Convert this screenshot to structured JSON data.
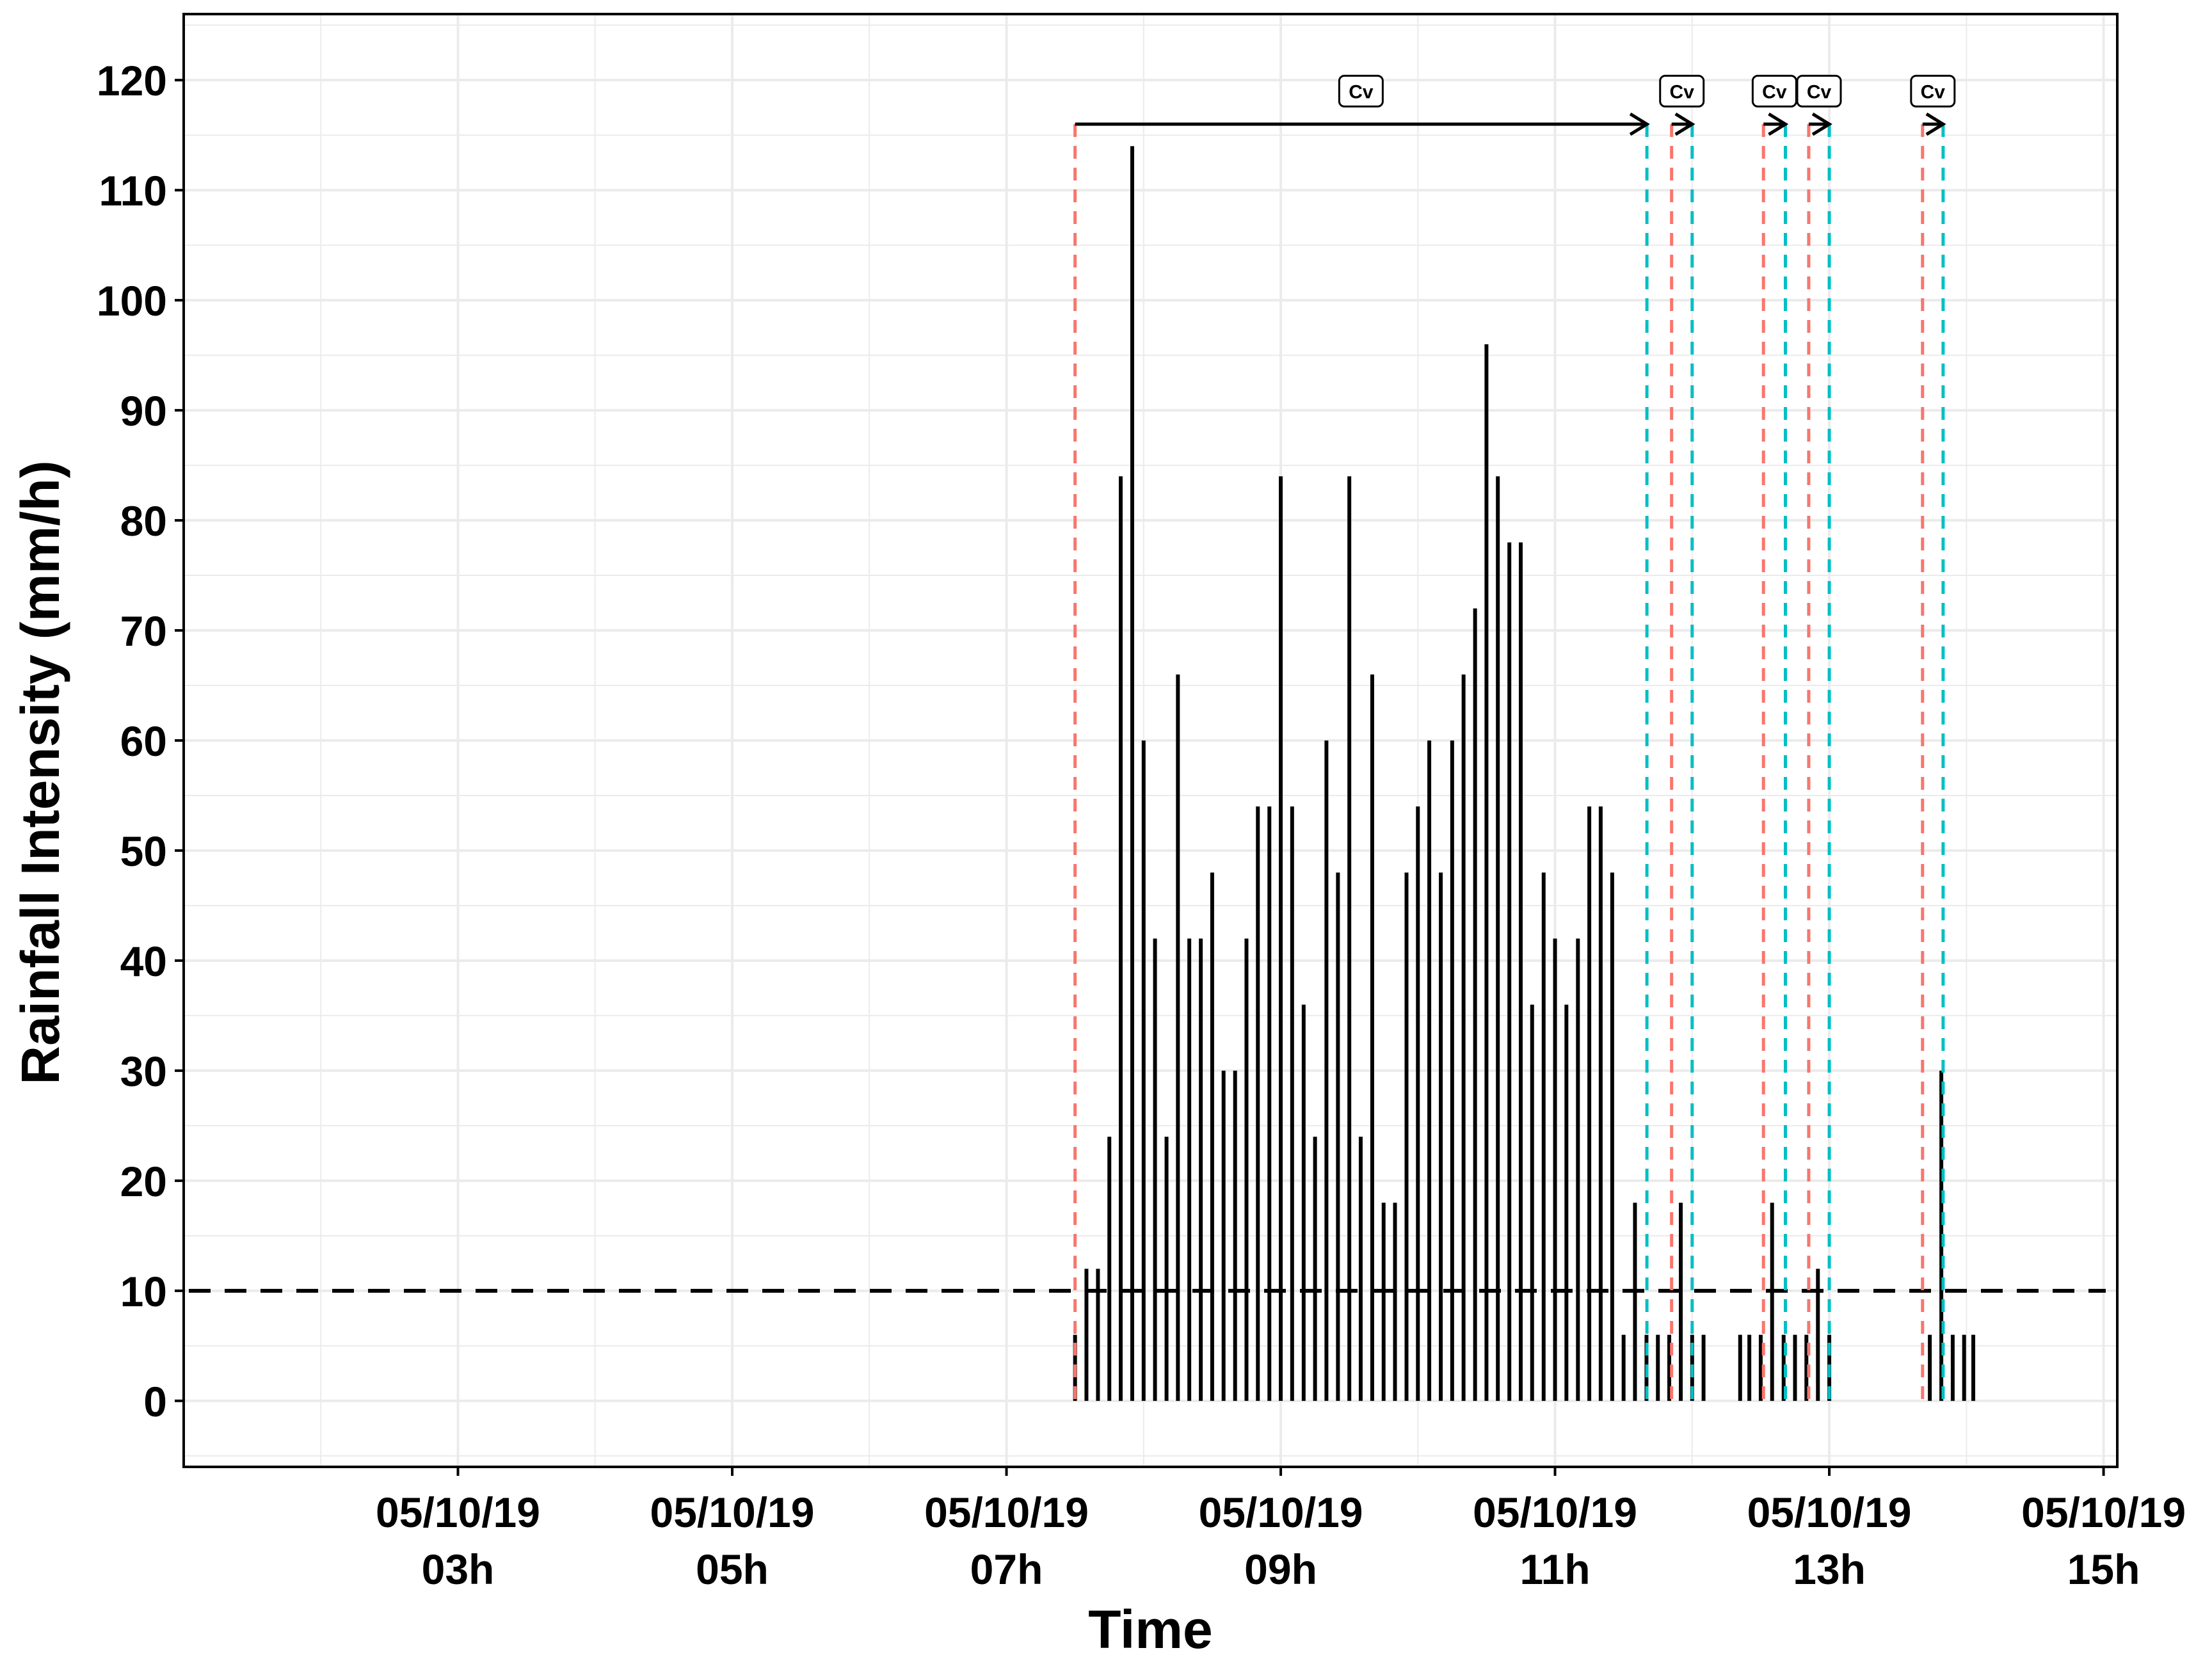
{
  "chart_data": {
    "type": "bar",
    "title": "",
    "xlabel": "Time",
    "ylabel": "Rainfall Intensity (mm/h)",
    "x_unit": "hours",
    "xlim": [
      1.0,
      15.1
    ],
    "ylim": [
      -6,
      126
    ],
    "y_ticks": [
      0,
      10,
      20,
      30,
      40,
      50,
      60,
      70,
      80,
      90,
      100,
      110,
      120
    ],
    "x_ticks": [
      {
        "x": 3,
        "line1": "05/10/19",
        "line2": "03h"
      },
      {
        "x": 5,
        "line1": "05/10/19",
        "line2": "05h"
      },
      {
        "x": 7,
        "line1": "05/10/19",
        "line2": "07h"
      },
      {
        "x": 9,
        "line1": "05/10/19",
        "line2": "09h"
      },
      {
        "x": 11,
        "line1": "05/10/19",
        "line2": "11h"
      },
      {
        "x": 13,
        "line1": "05/10/19",
        "line2": "13h"
      },
      {
        "x": 15,
        "line1": "05/10/19",
        "line2": "15h"
      }
    ],
    "threshold": 10,
    "bars": [
      [
        7.5,
        6
      ],
      [
        7.583,
        12
      ],
      [
        7.667,
        12
      ],
      [
        7.75,
        24
      ],
      [
        7.833,
        84
      ],
      [
        7.917,
        114
      ],
      [
        8.0,
        60
      ],
      [
        8.083,
        42
      ],
      [
        8.167,
        24
      ],
      [
        8.25,
        66
      ],
      [
        8.333,
        42
      ],
      [
        8.417,
        42
      ],
      [
        8.5,
        48
      ],
      [
        8.583,
        30
      ],
      [
        8.667,
        30
      ],
      [
        8.75,
        42
      ],
      [
        8.833,
        54
      ],
      [
        8.917,
        54
      ],
      [
        9.0,
        84
      ],
      [
        9.083,
        54
      ],
      [
        9.167,
        36
      ],
      [
        9.25,
        24
      ],
      [
        9.333,
        60
      ],
      [
        9.417,
        48
      ],
      [
        9.5,
        84
      ],
      [
        9.583,
        24
      ],
      [
        9.667,
        66
      ],
      [
        9.75,
        18
      ],
      [
        9.833,
        18
      ],
      [
        9.917,
        48
      ],
      [
        10.0,
        54
      ],
      [
        10.083,
        60
      ],
      [
        10.167,
        48
      ],
      [
        10.25,
        60
      ],
      [
        10.333,
        66
      ],
      [
        10.417,
        72
      ],
      [
        10.5,
        96
      ],
      [
        10.583,
        84
      ],
      [
        10.667,
        78
      ],
      [
        10.75,
        78
      ],
      [
        10.833,
        36
      ],
      [
        10.917,
        48
      ],
      [
        11.0,
        42
      ],
      [
        11.083,
        36
      ],
      [
        11.167,
        42
      ],
      [
        11.25,
        54
      ],
      [
        11.333,
        54
      ],
      [
        11.417,
        48
      ],
      [
        11.5,
        6
      ],
      [
        11.583,
        18
      ],
      [
        11.667,
        6
      ],
      [
        11.75,
        6
      ],
      [
        11.833,
        6
      ],
      [
        11.917,
        18
      ],
      [
        12.0,
        6
      ],
      [
        12.083,
        6
      ],
      [
        12.35,
        6
      ],
      [
        12.417,
        6
      ],
      [
        12.5,
        6
      ],
      [
        12.583,
        18
      ],
      [
        12.667,
        6
      ],
      [
        12.75,
        6
      ],
      [
        12.833,
        6
      ],
      [
        12.917,
        12
      ],
      [
        13.0,
        6
      ],
      [
        13.733,
        6
      ],
      [
        13.817,
        30
      ],
      [
        13.9,
        6
      ],
      [
        13.983,
        6
      ],
      [
        14.05,
        6
      ]
    ],
    "event_starts": [
      7.5,
      11.85,
      12.52,
      12.85,
      13.68
    ],
    "event_ends": [
      11.67,
      12.0,
      12.68,
      13.0,
      13.83
    ],
    "cv_arrows": [
      {
        "x_start": 7.5,
        "x_end": 11.67,
        "label": "Cv"
      },
      {
        "x_start": 11.85,
        "x_end": 12.0,
        "label": "Cv"
      },
      {
        "x_start": 12.52,
        "x_end": 12.68,
        "label": "Cv"
      },
      {
        "x_start": 12.85,
        "x_end": 13.0,
        "label": "Cv"
      },
      {
        "x_start": 13.68,
        "x_end": 13.83,
        "label": "Cv"
      }
    ],
    "arrow_y": 116,
    "label_y": 119,
    "grid": true,
    "legend": "none",
    "colors": {
      "bars": "#000000",
      "event_start": "#F8766D",
      "event_end": "#00BFC4",
      "threshold": "#000000",
      "grid": "#EBEBEB"
    }
  }
}
